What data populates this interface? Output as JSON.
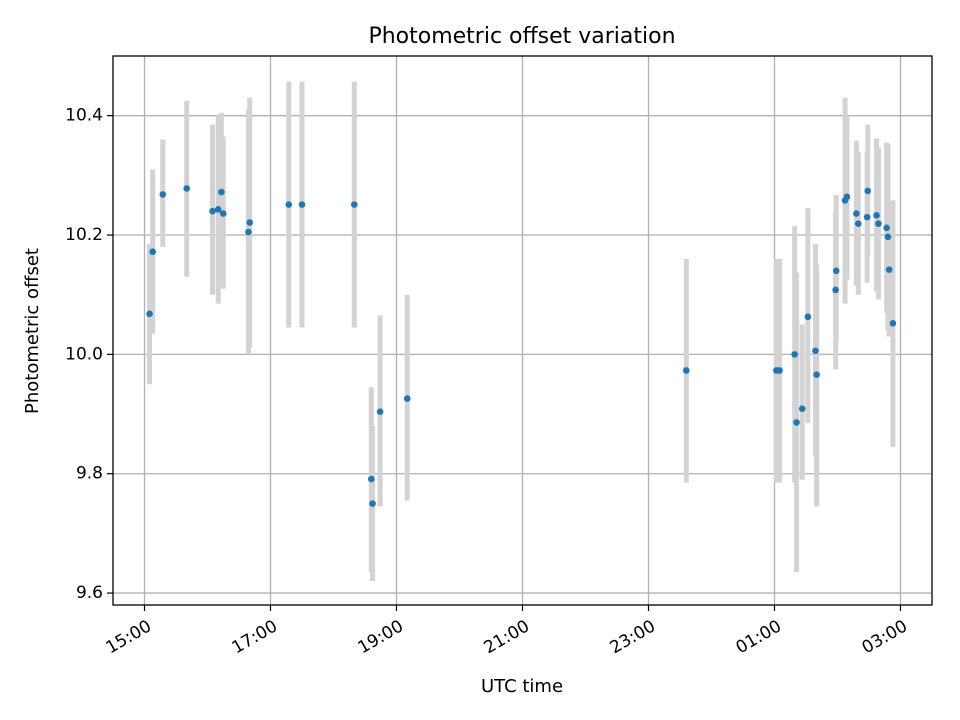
{
  "chart_data": {
    "type": "scatter",
    "title": "Photometric offset variation",
    "xlabel": "UTC time",
    "ylabel": "Photometric offset",
    "x_unit": "hours (UTC, continuing past midnight as 24+)",
    "xlim": [
      14.5,
      27.5
    ],
    "ylim": [
      9.58,
      10.5
    ],
    "x_ticks": [
      {
        "value": 15,
        "label": "15:00"
      },
      {
        "value": 17,
        "label": "17:00"
      },
      {
        "value": 19,
        "label": "19:00"
      },
      {
        "value": 21,
        "label": "21:00"
      },
      {
        "value": 23,
        "label": "23:00"
      },
      {
        "value": 25,
        "label": "01:00"
      },
      {
        "value": 27,
        "label": "03:00"
      }
    ],
    "y_ticks": [
      {
        "value": 9.6,
        "label": "9.6"
      },
      {
        "value": 9.8,
        "label": "9.8"
      },
      {
        "value": 10.0,
        "label": "10.0"
      },
      {
        "value": 10.2,
        "label": "10.2"
      },
      {
        "value": 10.4,
        "label": "10.4"
      }
    ],
    "grid": true,
    "colors": {
      "point": "#1f77b4",
      "errorbar": "#d3d3d3",
      "grid": "#b0b0b0",
      "axes": "#000000"
    },
    "points": [
      {
        "x": 15.08,
        "y": 10.068,
        "lo": 9.95,
        "hi": 10.185
      },
      {
        "x": 15.13,
        "y": 10.172,
        "lo": 10.035,
        "hi": 10.31
      },
      {
        "x": 15.29,
        "y": 10.268,
        "lo": 10.18,
        "hi": 10.36
      },
      {
        "x": 15.67,
        "y": 10.278,
        "lo": 10.13,
        "hi": 10.425
      },
      {
        "x": 16.08,
        "y": 10.24,
        "lo": 10.1,
        "hi": 10.385
      },
      {
        "x": 16.17,
        "y": 10.243,
        "lo": 10.085,
        "hi": 10.4
      },
      {
        "x": 16.22,
        "y": 10.272,
        "lo": 10.12,
        "hi": 10.405
      },
      {
        "x": 16.25,
        "y": 10.236,
        "lo": 10.11,
        "hi": 10.365
      },
      {
        "x": 16.67,
        "y": 10.221,
        "lo": 10.012,
        "hi": 10.43
      },
      {
        "x": 16.65,
        "y": 10.205,
        "lo": 10.0,
        "hi": 10.41
      },
      {
        "x": 17.29,
        "y": 10.251,
        "lo": 10.045,
        "hi": 10.457
      },
      {
        "x": 17.5,
        "y": 10.251,
        "lo": 10.045,
        "hi": 10.457
      },
      {
        "x": 18.33,
        "y": 10.251,
        "lo": 10.045,
        "hi": 10.457
      },
      {
        "x": 18.6,
        "y": 9.791,
        "lo": 9.635,
        "hi": 9.945
      },
      {
        "x": 18.62,
        "y": 9.75,
        "lo": 9.62,
        "hi": 9.88
      },
      {
        "x": 18.74,
        "y": 9.904,
        "lo": 9.745,
        "hi": 10.065
      },
      {
        "x": 19.17,
        "y": 9.926,
        "lo": 9.755,
        "hi": 10.1
      },
      {
        "x": 23.6,
        "y": 9.973,
        "lo": 9.785,
        "hi": 10.16
      },
      {
        "x": 25.03,
        "y": 9.973,
        "lo": 9.785,
        "hi": 10.16
      },
      {
        "x": 25.08,
        "y": 9.973,
        "lo": 9.785,
        "hi": 10.16
      },
      {
        "x": 25.32,
        "y": 10.0,
        "lo": 9.785,
        "hi": 10.215
      },
      {
        "x": 25.35,
        "y": 9.886,
        "lo": 9.635,
        "hi": 10.137
      },
      {
        "x": 25.44,
        "y": 9.909,
        "lo": 9.79,
        "hi": 10.05
      },
      {
        "x": 25.53,
        "y": 10.063,
        "lo": 9.885,
        "hi": 10.245
      },
      {
        "x": 25.65,
        "y": 10.006,
        "lo": 9.83,
        "hi": 10.185
      },
      {
        "x": 25.67,
        "y": 9.966,
        "lo": 9.745,
        "hi": 10.15
      },
      {
        "x": 25.97,
        "y": 10.108,
        "lo": 9.975,
        "hi": 10.24
      },
      {
        "x": 25.98,
        "y": 10.14,
        "lo": 10.02,
        "hi": 10.267
      },
      {
        "x": 26.12,
        "y": 10.258,
        "lo": 10.085,
        "hi": 10.43
      },
      {
        "x": 26.15,
        "y": 10.264,
        "lo": 10.125,
        "hi": 10.4
      },
      {
        "x": 26.3,
        "y": 10.236,
        "lo": 10.115,
        "hi": 10.358
      },
      {
        "x": 26.33,
        "y": 10.219,
        "lo": 10.1,
        "hi": 10.34
      },
      {
        "x": 26.48,
        "y": 10.274,
        "lo": 10.165,
        "hi": 10.385
      },
      {
        "x": 26.47,
        "y": 10.23,
        "lo": 10.12,
        "hi": 10.34
      },
      {
        "x": 26.62,
        "y": 10.233,
        "lo": 10.105,
        "hi": 10.362
      },
      {
        "x": 26.65,
        "y": 10.219,
        "lo": 10.092,
        "hi": 10.347
      },
      {
        "x": 26.78,
        "y": 10.212,
        "lo": 10.07,
        "hi": 10.355
      },
      {
        "x": 26.8,
        "y": 10.197,
        "lo": 10.04,
        "hi": 10.353
      },
      {
        "x": 26.82,
        "y": 10.142,
        "lo": 10.03,
        "hi": 10.255
      },
      {
        "x": 26.88,
        "y": 10.052,
        "lo": 9.845,
        "hi": 10.258
      }
    ]
  }
}
